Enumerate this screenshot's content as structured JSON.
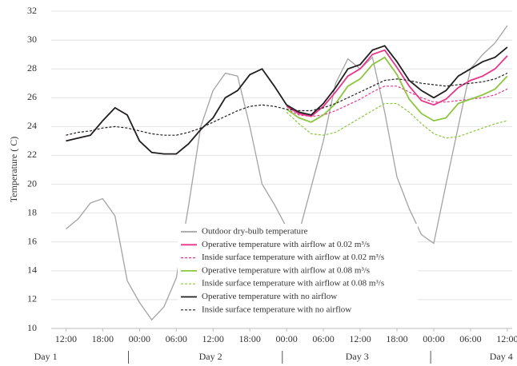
{
  "chart_data": {
    "type": "line",
    "y_label": "Temperature ( C)",
    "x": [
      0,
      2,
      4,
      6,
      8,
      10,
      12,
      14,
      16,
      18,
      20,
      22,
      24,
      26,
      28,
      30,
      32,
      34,
      36,
      38,
      40,
      42,
      44,
      46,
      48,
      50,
      52,
      54,
      56,
      58,
      60,
      62,
      64,
      66,
      68,
      70,
      72
    ],
    "xlim": [
      -2.4,
      72.8
    ],
    "xticks": [
      {
        "value": 0,
        "label": "12:00"
      },
      {
        "value": 6,
        "label": "18:00"
      },
      {
        "value": 12,
        "label": "00:00"
      },
      {
        "value": 18,
        "label": "06:00"
      },
      {
        "value": 24,
        "label": "12:00"
      },
      {
        "value": 30,
        "label": "18:00"
      },
      {
        "value": 36,
        "label": "00:00"
      },
      {
        "value": 42,
        "label": "06:00"
      },
      {
        "value": 48,
        "label": "12:00"
      },
      {
        "value": 54,
        "label": "18:00"
      },
      {
        "value": 60,
        "label": "00:00"
      },
      {
        "value": 66,
        "label": "06:00"
      },
      {
        "value": 72,
        "label": "12:00"
      }
    ],
    "day_labels": [
      "Day 1",
      "Day 2",
      "Day 3",
      "Day 4"
    ],
    "ylim": [
      10,
      32
    ],
    "yticks": [
      10,
      12,
      14,
      16,
      18,
      20,
      22,
      24,
      26,
      28,
      30,
      32
    ],
    "grid": true,
    "series": [
      {
        "name": "Outdoor dry-bulb  temperature",
        "color": "#a3a3a3",
        "dashed": false,
        "values": [
          16.9,
          17.6,
          18.7,
          19,
          17.8,
          13.3,
          11.8,
          10.6,
          11.5,
          13.5,
          18.5,
          24,
          26.5,
          27.7,
          27.5,
          24,
          20,
          18.6,
          17,
          16.6,
          19.8,
          23,
          27,
          28.7,
          28,
          28.8,
          25,
          20.5,
          18.3,
          16.5,
          15.9,
          20,
          24,
          28,
          29,
          29.8,
          31
        ]
      },
      {
        "name": "Operative temperature with airflow at 0.02 m³/s",
        "color": "#e6378a",
        "dashed": false,
        "values": [
          null,
          null,
          null,
          null,
          null,
          null,
          null,
          null,
          null,
          null,
          null,
          null,
          null,
          null,
          null,
          null,
          null,
          null,
          25.4,
          24.9,
          24.7,
          25.4,
          26.4,
          27.5,
          28,
          29,
          29.3,
          28.1,
          26.8,
          25.8,
          25.5,
          25.9,
          26.7,
          27.2,
          27.5,
          28,
          28.9
        ]
      },
      {
        "name": "Inside surface temperature with airflow at 0.02 m³/s",
        "color": "#e6378a",
        "dashed": true,
        "values": [
          null,
          null,
          null,
          null,
          null,
          null,
          null,
          null,
          null,
          null,
          null,
          null,
          null,
          null,
          null,
          null,
          null,
          null,
          25.2,
          24.8,
          24.7,
          24.8,
          25.1,
          25.5,
          25.9,
          26.4,
          26.8,
          26.8,
          26.4,
          26,
          25.7,
          25.7,
          25.8,
          25.9,
          26,
          26.2,
          26.6
        ]
      },
      {
        "name": "Operative temperature with airflow at 0.08 m³/s",
        "color": "#8cc63f",
        "dashed": false,
        "values": [
          null,
          null,
          null,
          null,
          null,
          null,
          null,
          null,
          null,
          null,
          null,
          null,
          null,
          null,
          null,
          null,
          null,
          null,
          25.2,
          24.6,
          24.3,
          24.8,
          25.6,
          26.8,
          27.3,
          28.3,
          28.8,
          27.6,
          25.9,
          24.9,
          24.4,
          24.6,
          25.6,
          25.9,
          26.2,
          26.6,
          27.5
        ]
      },
      {
        "name": "Inside surface temperature with airflow at 0.08 m³/s",
        "color": "#8cc63f",
        "dashed": true,
        "values": [
          null,
          null,
          null,
          null,
          null,
          null,
          null,
          null,
          null,
          null,
          null,
          null,
          null,
          null,
          null,
          null,
          null,
          null,
          25,
          24.2,
          23.5,
          23.4,
          23.6,
          24.1,
          24.6,
          25.1,
          25.6,
          25.6,
          25,
          24.2,
          23.5,
          23.2,
          23.3,
          23.6,
          23.9,
          24.2,
          24.4
        ]
      },
      {
        "name": "Operative temperature with no airflow",
        "color": "#231f20",
        "dashed": false,
        "values": [
          23,
          23.2,
          23.4,
          24.4,
          25.3,
          24.8,
          23,
          22.2,
          22.1,
          22.1,
          22.8,
          23.8,
          24.6,
          26,
          26.5,
          27.6,
          28,
          26.8,
          25.5,
          25,
          24.8,
          25.6,
          26.7,
          28,
          28.3,
          29.3,
          29.6,
          28.5,
          27.2,
          26.5,
          26,
          26.5,
          27.5,
          28,
          28.5,
          28.8,
          29.5
        ]
      },
      {
        "name": "Inside surface temperature with no airflow",
        "color": "#231f20",
        "dashed": true,
        "values": [
          23.4,
          23.6,
          23.7,
          23.9,
          24,
          23.9,
          23.7,
          23.5,
          23.4,
          23.4,
          23.6,
          23.9,
          24.3,
          24.7,
          25.1,
          25.4,
          25.5,
          25.4,
          25.2,
          25.1,
          25.1,
          25.3,
          25.6,
          26,
          26.4,
          26.8,
          27.2,
          27.3,
          27.2,
          27,
          26.9,
          26.8,
          26.9,
          27,
          27.1,
          27.3,
          27.7
        ]
      }
    ]
  }
}
